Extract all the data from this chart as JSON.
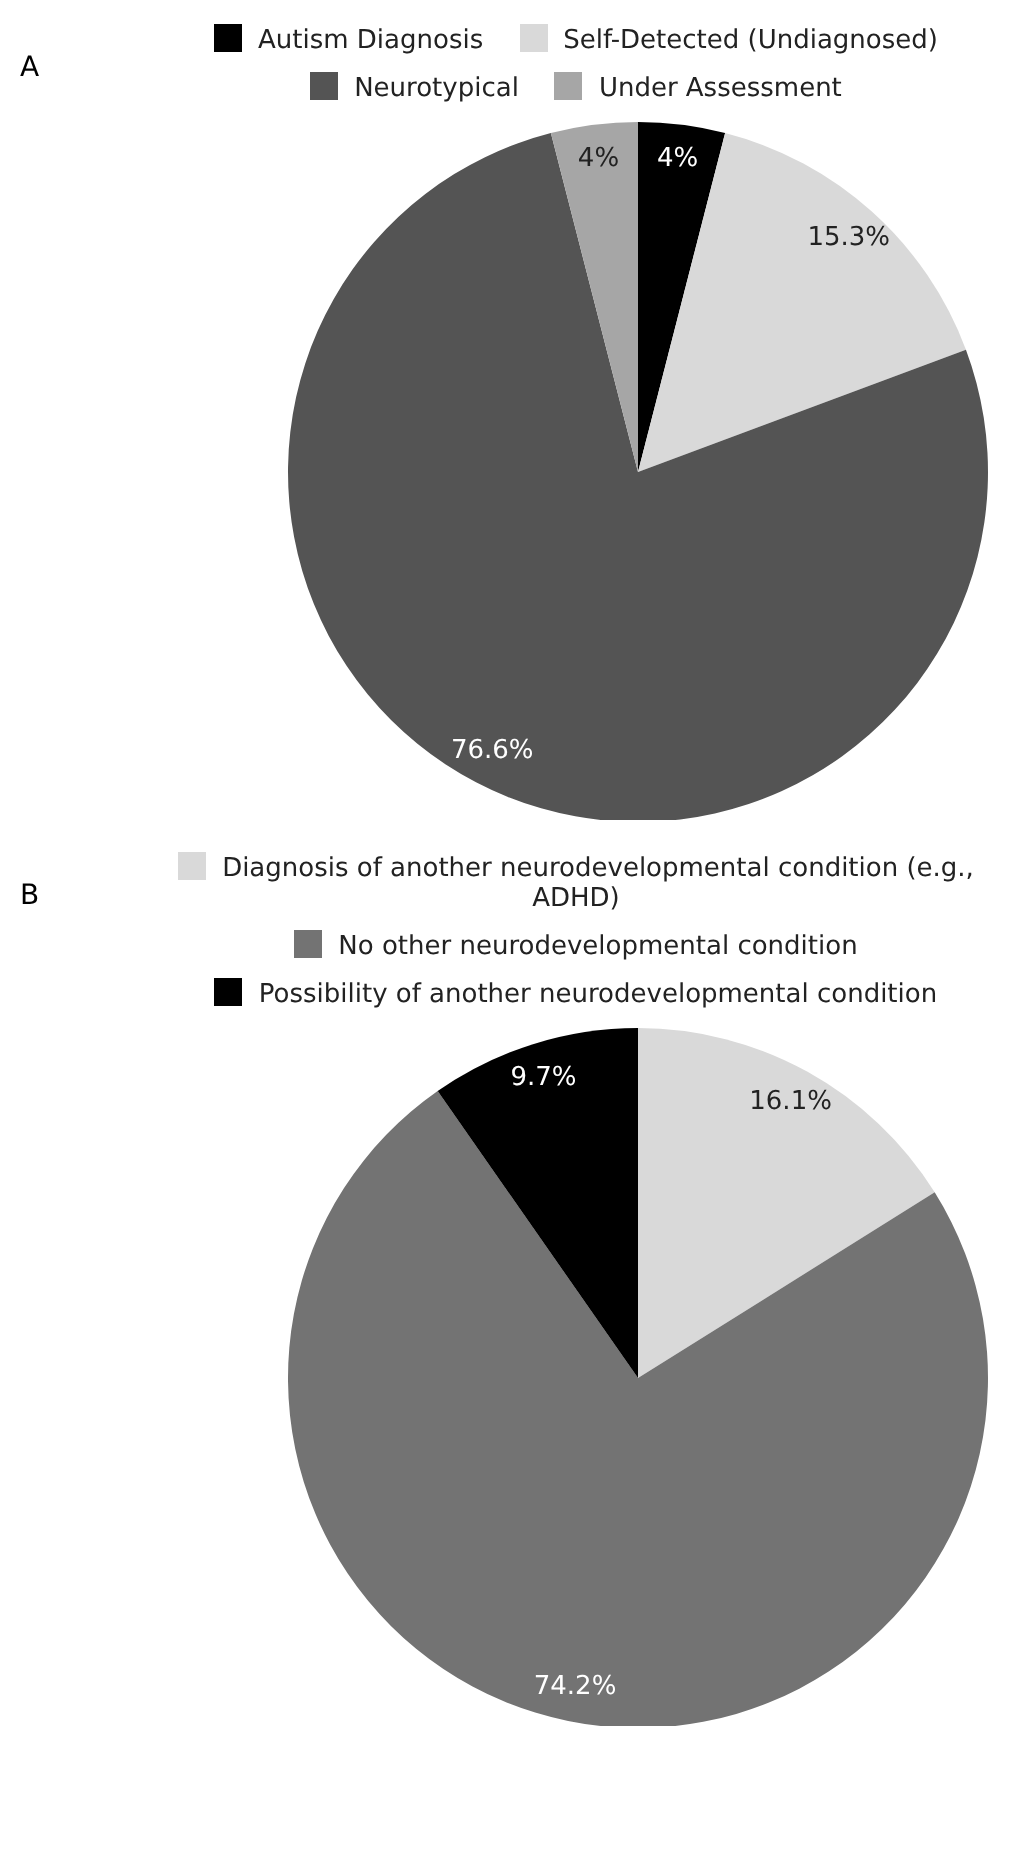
{
  "chart_data": [
    {
      "type": "pie",
      "title": "A",
      "categories": [
        "Autism Diagnosis",
        "Self-Detected (Undiagnosed)",
        "Neurotypical",
        "Under Assessment"
      ],
      "values": [
        4,
        15.3,
        76.6,
        4
      ],
      "colors": [
        "#000000",
        "#d9d9d9",
        "#545454",
        "#a6a6a6"
      ],
      "value_labels": [
        "4%",
        "15.3%",
        "76.6%",
        "4%"
      ],
      "legend": "top"
    },
    {
      "type": "pie",
      "title": "B",
      "categories": [
        "Diagnosis of another neurodevelopmental condition (e.g., ADHD)",
        "No other neurodevelopmental condition",
        "Possibility of another neurodevelopmental condition"
      ],
      "values": [
        16.1,
        74.2,
        9.7
      ],
      "colors": [
        "#d9d9d9",
        "#737373",
        "#000000"
      ],
      "value_labels": [
        "16.1%",
        "74.2%",
        "9.7%"
      ],
      "legend": "top"
    }
  ]
}
